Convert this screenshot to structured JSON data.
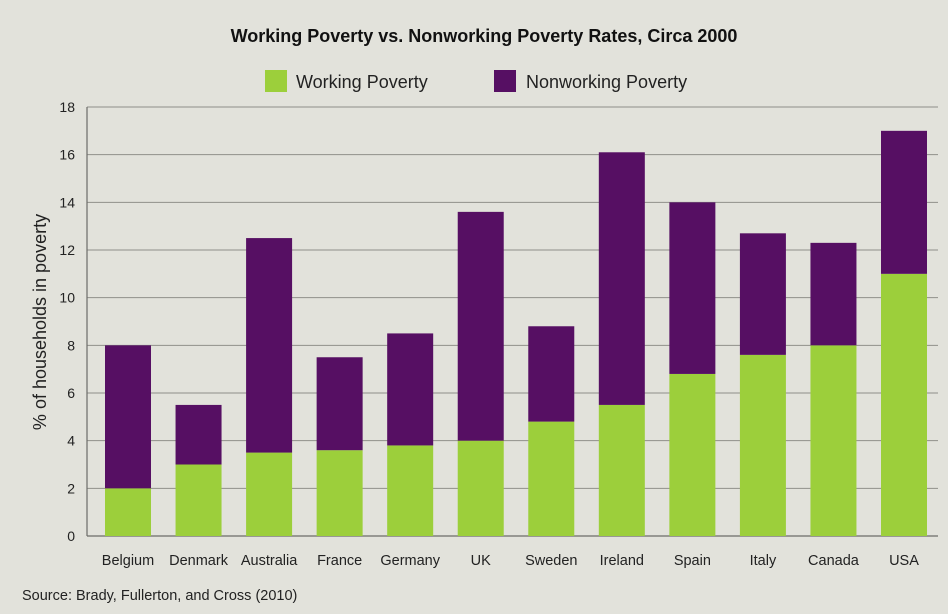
{
  "chart_data": {
    "type": "bar",
    "stacked": true,
    "title": "Working Poverty vs. Nonworking Poverty Rates, Circa 2000",
    "ylabel": "% of households in poverty",
    "xlabel": "",
    "ylim": [
      0,
      18
    ],
    "yticks": [
      "0",
      "2",
      "4",
      "6",
      "8",
      "10",
      "12",
      "14",
      "16",
      "18"
    ],
    "grid": true,
    "legend_position": "top-center",
    "categories": [
      "Belgium",
      "Denmark",
      "Australia",
      "France",
      "Germany",
      "UK",
      "Sweden",
      "Ireland",
      "Spain",
      "Italy",
      "Canada",
      "USA"
    ],
    "series": [
      {
        "name": "Working Poverty",
        "color": "#9ccf3b",
        "values": [
          2.0,
          3.0,
          3.5,
          3.6,
          3.8,
          4.0,
          4.8,
          5.5,
          6.8,
          7.6,
          8.0,
          11.0
        ]
      },
      {
        "name": "Nonworking Poverty",
        "color": "#560f63",
        "values": [
          6.0,
          2.5,
          9.0,
          3.9,
          4.7,
          9.6,
          4.0,
          10.6,
          7.2,
          5.1,
          4.3,
          6.0
        ]
      }
    ],
    "source": "Source: Brady, Fullerton, and Cross (2010)"
  },
  "colors": {
    "background": "#e2e2db",
    "gridline": "#8f8f8a"
  }
}
